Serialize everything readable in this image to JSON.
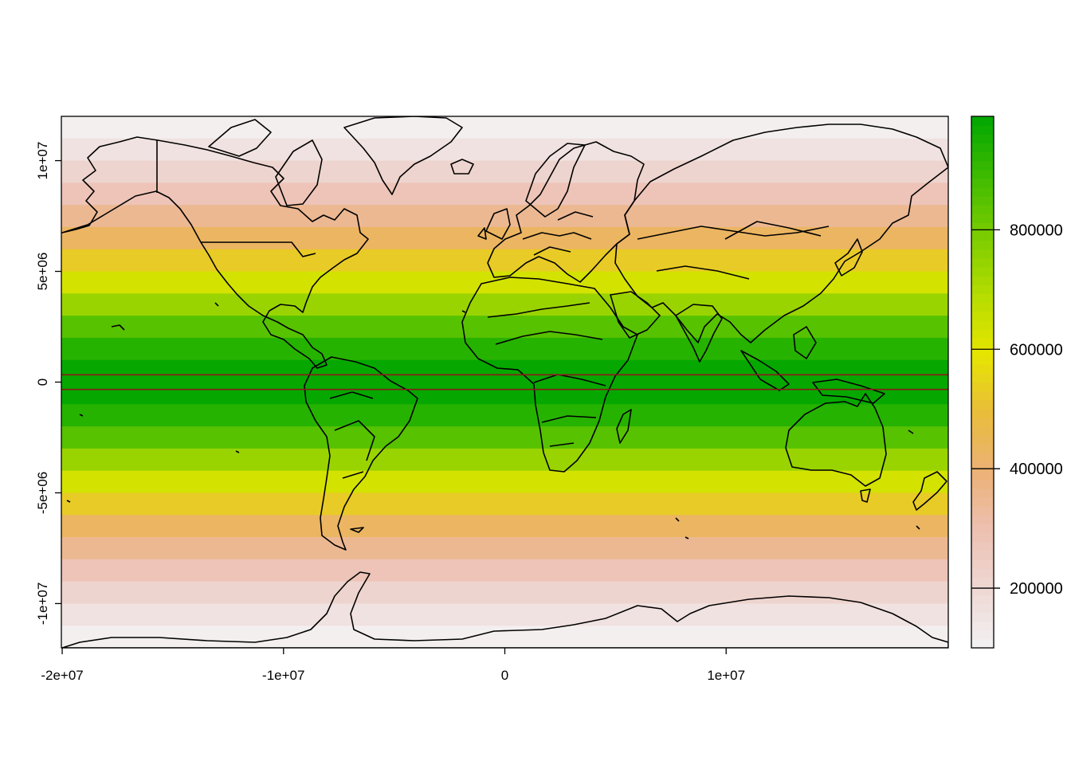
{
  "chart_data": {
    "type": "heatmap",
    "projection": "mercator",
    "title": "",
    "xlabel": "",
    "ylabel": "",
    "xlim": [
      -20037508,
      20037508
    ],
    "ylim": [
      -12000000,
      12000000
    ],
    "x_ticks": [
      {
        "value": -20000000,
        "label": "-2e+07"
      },
      {
        "value": -10000000,
        "label": "-1e+07"
      },
      {
        "value": 0,
        "label": "0"
      },
      {
        "value": 10000000,
        "label": "1e+07"
      }
    ],
    "y_ticks": [
      {
        "value": 10000000,
        "label": "1e+07"
      },
      {
        "value": 5000000,
        "label": "5e+06"
      },
      {
        "value": 0,
        "label": "0"
      },
      {
        "value": -5000000,
        "label": "-5e+06"
      },
      {
        "value": -10000000,
        "label": "-1e+07"
      }
    ],
    "band_height": 1000000,
    "bands": [
      {
        "y_min": 11000000,
        "y_max": 12000000,
        "value": 112000
      },
      {
        "y_min": 10000000,
        "y_max": 11000000,
        "value": 160000
      },
      {
        "y_min": 9000000,
        "y_max": 10000000,
        "value": 215000
      },
      {
        "y_min": 8000000,
        "y_max": 9000000,
        "value": 280000
      },
      {
        "y_min": 7000000,
        "y_max": 8000000,
        "value": 350000
      },
      {
        "y_min": 6000000,
        "y_max": 7000000,
        "value": 430000
      },
      {
        "y_min": 5000000,
        "y_max": 6000000,
        "value": 530000
      },
      {
        "y_min": 4000000,
        "y_max": 5000000,
        "value": 630000
      },
      {
        "y_min": 3000000,
        "y_max": 4000000,
        "value": 740000
      },
      {
        "y_min": 2000000,
        "y_max": 3000000,
        "value": 850000
      },
      {
        "y_min": 1000000,
        "y_max": 2000000,
        "value": 930000
      },
      {
        "y_min": 0,
        "y_max": 1000000,
        "value": 980000
      },
      {
        "y_min": -1000000,
        "y_max": 0,
        "value": 980000
      },
      {
        "y_min": -2000000,
        "y_max": -1000000,
        "value": 930000
      },
      {
        "y_min": -3000000,
        "y_max": -2000000,
        "value": 850000
      },
      {
        "y_min": -4000000,
        "y_max": -3000000,
        "value": 740000
      },
      {
        "y_min": -5000000,
        "y_max": -4000000,
        "value": 630000
      },
      {
        "y_min": -6000000,
        "y_max": -5000000,
        "value": 530000
      },
      {
        "y_min": -7000000,
        "y_max": -6000000,
        "value": 430000
      },
      {
        "y_min": -8000000,
        "y_max": -7000000,
        "value": 350000
      },
      {
        "y_min": -9000000,
        "y_max": -8000000,
        "value": 280000
      },
      {
        "y_min": -10000000,
        "y_max": -9000000,
        "value": 215000
      },
      {
        "y_min": -11000000,
        "y_max": -10000000,
        "value": 160000
      },
      {
        "y_min": -12000000,
        "y_max": -11000000,
        "value": 112000
      }
    ],
    "reference_lines": [
      {
        "y": 330000,
        "color": "#8b1a1a"
      },
      {
        "y": -330000,
        "color": "#8b1a1a"
      }
    ],
    "colorbar": {
      "range": [
        100000,
        990000
      ],
      "ticks": [
        {
          "value": 200000,
          "label": "200000"
        },
        {
          "value": 400000,
          "label": "400000"
        },
        {
          "value": 600000,
          "label": "600000"
        },
        {
          "value": 800000,
          "label": "800000"
        }
      ],
      "palette": [
        "#F2F2F2",
        "#EED8D4",
        "#EDC0B1",
        "#ECB176",
        "#E9BD3A",
        "#E6E600",
        "#B4DC00",
        "#7ACC00",
        "#3EBB00",
        "#00A600"
      ]
    },
    "colors": {
      "frame": "#000000",
      "coastline": "#000000",
      "reference_line": "#8b1a1a"
    }
  }
}
